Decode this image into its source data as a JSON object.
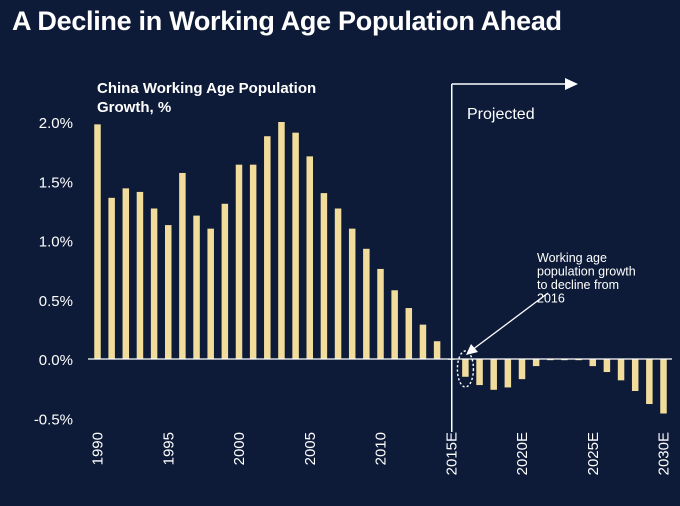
{
  "title": "A Decline in Working Age Population Ahead",
  "chart_data": {
    "type": "bar",
    "subtitle_lines": [
      "China Working Age Population",
      "Growth, %"
    ],
    "categories": [
      "1990",
      "1991",
      "1992",
      "1993",
      "1994",
      "1995",
      "1996",
      "1997",
      "1998",
      "1999",
      "2000",
      "2001",
      "2002",
      "2003",
      "2004",
      "2005",
      "2006",
      "2007",
      "2008",
      "2009",
      "2010",
      "2011",
      "2012",
      "2013",
      "2014",
      "2015E",
      "2016E",
      "2017E",
      "2018E",
      "2019E",
      "2020E",
      "2021E",
      "2022E",
      "2023E",
      "2024E",
      "2025E",
      "2026E",
      "2027E",
      "2028E",
      "2029E",
      "2030E"
    ],
    "values": [
      1.98,
      1.36,
      1.44,
      1.41,
      1.27,
      1.13,
      1.57,
      1.21,
      1.1,
      1.31,
      1.64,
      1.64,
      1.88,
      2.0,
      1.91,
      1.71,
      1.4,
      1.27,
      1.1,
      0.93,
      0.76,
      0.58,
      0.43,
      0.29,
      0.15,
      0.0,
      -0.15,
      -0.22,
      -0.26,
      -0.24,
      -0.17,
      -0.06,
      -0.01,
      -0.01,
      -0.01,
      -0.06,
      -0.11,
      -0.18,
      -0.27,
      -0.38,
      -0.46
    ],
    "tick_labels_x": [
      "1990",
      "1995",
      "2000",
      "2005",
      "2010",
      "2015E",
      "2020E",
      "2025E",
      "2030E"
    ],
    "tick_labels_y": [
      "2.0%",
      "1.5%",
      "1.0%",
      "0.5%",
      "0.0%",
      "-0.5%"
    ],
    "ylim": [
      -0.5,
      2.0
    ],
    "grid": false,
    "bar_color": "#f2dc9b",
    "projected_label": "Projected",
    "annotation_lines": [
      "Working age",
      "population growth",
      "to decline from",
      "2016"
    ]
  }
}
